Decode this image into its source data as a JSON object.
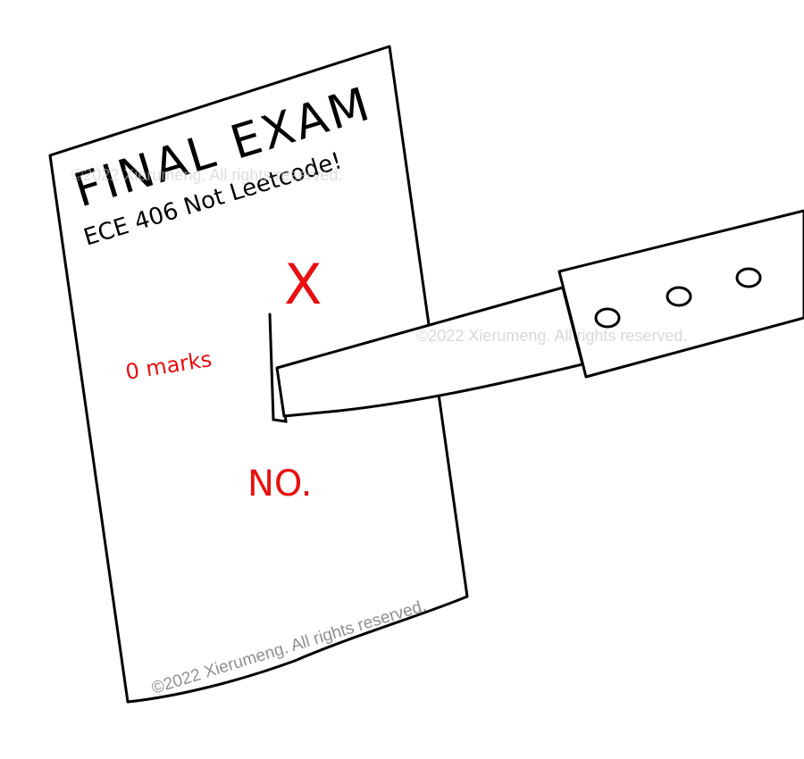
{
  "paper": {
    "title": "FINAL EXAM",
    "subtitle": "ECE 406 Not Leetcode!",
    "cross_mark": "X",
    "score": "0 marks",
    "comment": "NO."
  },
  "watermarks": {
    "top": "©2022 Xierumeng. All rights reserved.",
    "middle": "©2022 Xierumeng. All rights reserved.",
    "bottom": "©2022 Xierumeng. All rights reserved."
  },
  "colors": {
    "ink": "#000000",
    "red_ink": "#e81010",
    "watermark": "#9a9a9a"
  },
  "icons": {
    "knife": "knife-icon"
  }
}
